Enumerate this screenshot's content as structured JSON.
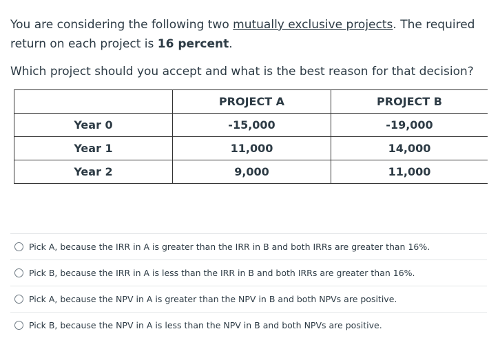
{
  "question": {
    "intro_before": "You are considering the following two ",
    "intro_link": "mutually exclusive projects",
    "intro_middle": ". The required return on each project is ",
    "rate": "16 percent",
    "intro_end": ".",
    "prompt": "Which project should you accept and what is the best reason for that decision?"
  },
  "table": {
    "headers": [
      "",
      "PROJECT A",
      "PROJECT B"
    ],
    "rows": [
      [
        "Year 0",
        "-15,000",
        "-19,000"
      ],
      [
        "Year 1",
        "11,000",
        "14,000"
      ],
      [
        "Year 2",
        "9,000",
        "11,000"
      ]
    ]
  },
  "answers": [
    "Pick A, because the IRR in A is greater than the IRR in B and both IRRs are greater than 16%.",
    "Pick B, because the IRR in A is less than the IRR in B and both IRRs are greater than 16%.",
    "Pick A, because the NPV in A is greater than the NPV in B and both NPVs are positive.",
    "Pick B, because the NPV in A is less than the NPV in B and both NPVs are positive."
  ]
}
